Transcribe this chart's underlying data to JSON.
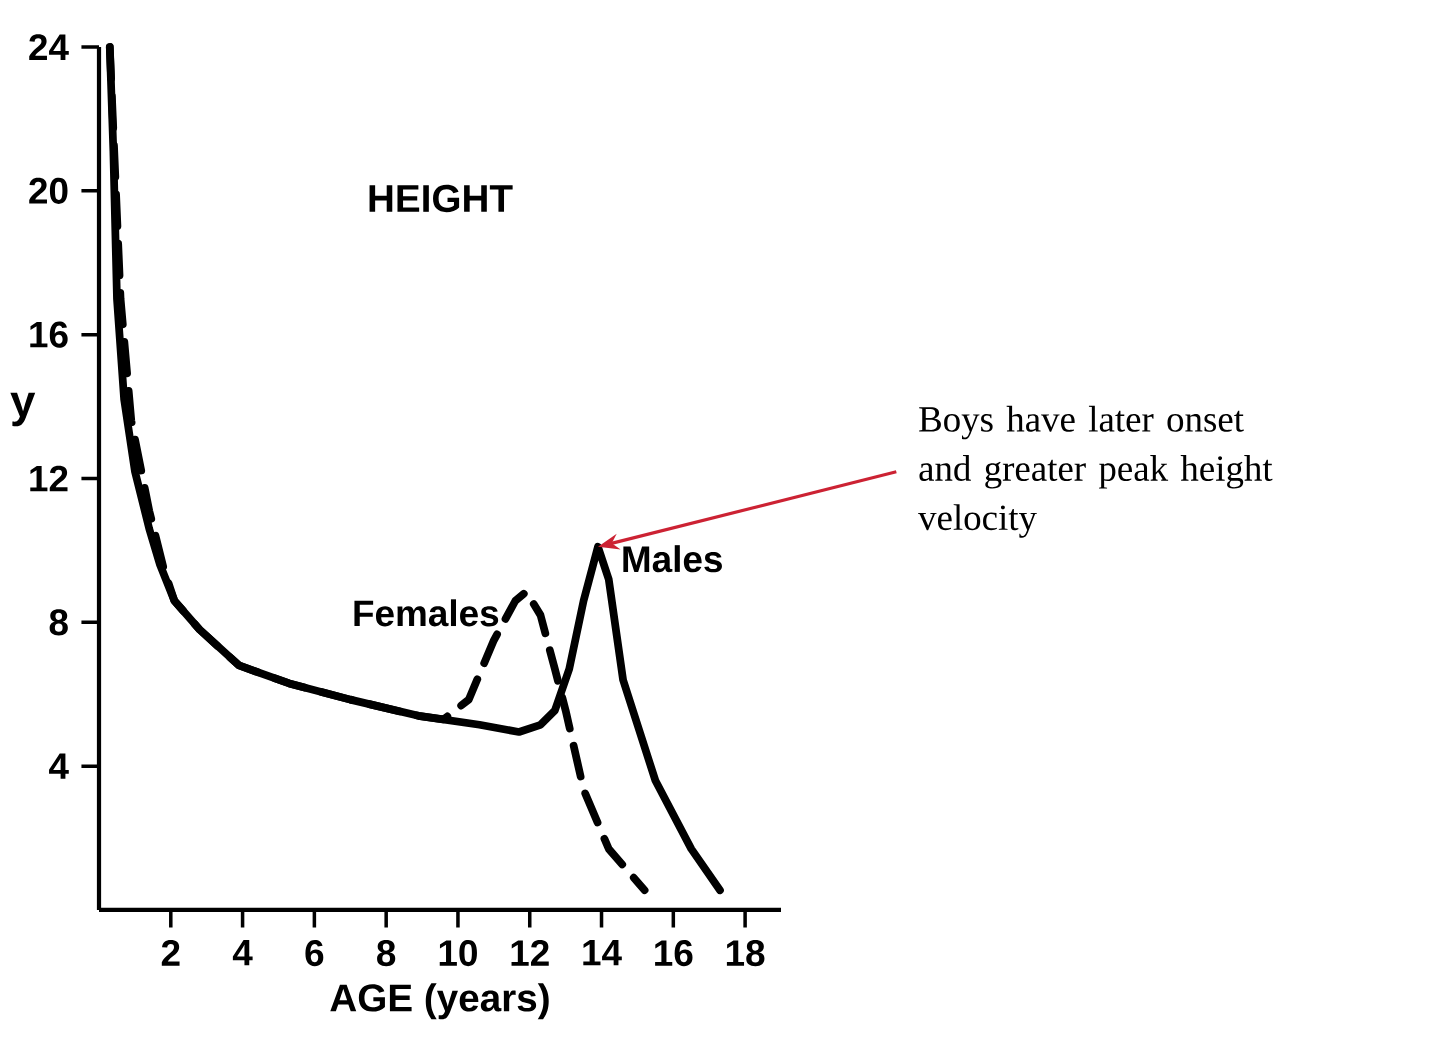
{
  "chart_data": {
    "type": "line",
    "title": "HEIGHT",
    "xlabel": "AGE (years)",
    "ylabel": "y",
    "xlim": [
      0,
      19
    ],
    "ylim": [
      0,
      24
    ],
    "xticks": [
      2,
      4,
      6,
      8,
      10,
      12,
      14,
      16,
      18
    ],
    "yticks": [
      4,
      8,
      12,
      16,
      20,
      24
    ],
    "series": [
      {
        "name": "Males",
        "color": "#000000",
        "line_style": "solid",
        "x": [
          0.3,
          0.4,
          0.5,
          0.7,
          1.0,
          1.4,
          1.7,
          2.1,
          2.8,
          3.9,
          5.3,
          7.0,
          8.9,
          10.6,
          11.7,
          12.3,
          12.7,
          13.1,
          13.5,
          13.9,
          14.2,
          14.6,
          15.5,
          16.5,
          17.3
        ],
        "values": [
          24,
          21.1,
          17.0,
          14.2,
          12.2,
          10.6,
          9.6,
          8.6,
          7.8,
          6.8,
          6.3,
          5.85,
          5.4,
          5.15,
          4.95,
          5.15,
          5.55,
          6.7,
          8.6,
          10.1,
          9.2,
          6.4,
          3.6,
          1.7,
          0.55
        ]
      },
      {
        "name": "Females",
        "color": "#000000",
        "line_style": "dashed",
        "x": [
          0.3,
          0.6,
          0.9,
          1.4,
          1.8,
          2.1,
          2.8,
          3.9,
          5.3,
          7.0,
          8.9,
          9.6,
          10.3,
          11.0,
          11.6,
          11.9,
          12.3,
          12.7,
          13.0,
          13.5,
          14.2,
          15.2
        ],
        "values": [
          24,
          17.0,
          13.6,
          11.1,
          9.5,
          8.6,
          7.8,
          6.8,
          6.3,
          5.85,
          5.4,
          5.3,
          5.85,
          7.5,
          8.6,
          8.85,
          8.2,
          6.7,
          5.55,
          3.35,
          1.7,
          0.55
        ]
      }
    ],
    "annotations": [
      "Boys have later onset and greater peak height velocity"
    ]
  }
}
